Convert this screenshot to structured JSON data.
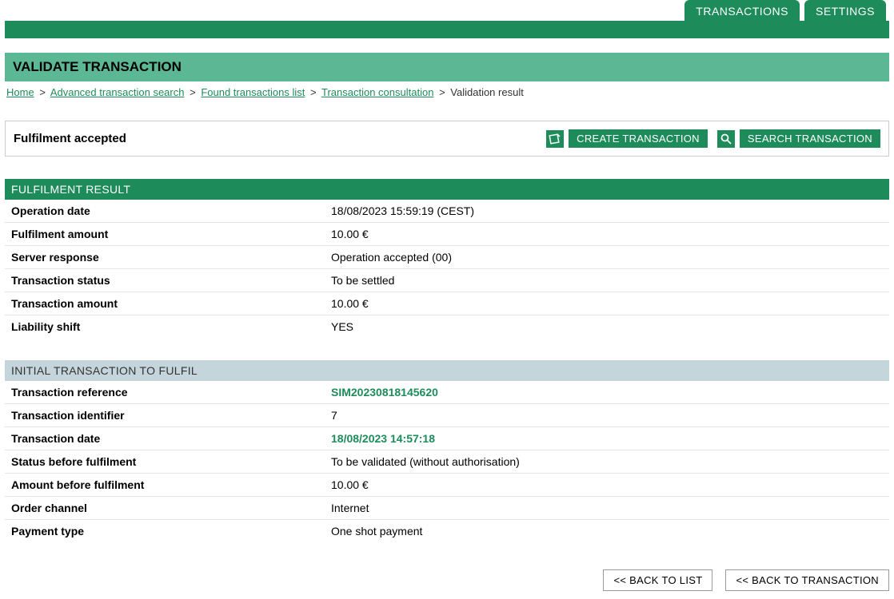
{
  "tabs": {
    "transactions": "TRANSACTIONS",
    "settings": "SETTINGS"
  },
  "page_title": "VALIDATE TRANSACTION",
  "breadcrumb": {
    "home": "Home",
    "advanced_search": "Advanced transaction search",
    "found_list": "Found transactions list",
    "consultation": "Transaction consultation",
    "current": "Validation result"
  },
  "status": {
    "text": "Fulfilment accepted",
    "create_label": "CREATE TRANSACTION",
    "search_label": "SEARCH TRANSACTION"
  },
  "fulfilment_result": {
    "header": "FULFILMENT RESULT",
    "rows": [
      {
        "label": "Operation date",
        "value": "18/08/2023 15:59:19 (CEST)"
      },
      {
        "label": "Fulfilment amount",
        "value": "10.00 €"
      },
      {
        "label": "Server response",
        "value": "Operation accepted (00)"
      },
      {
        "label": "Transaction status",
        "value": "To be settled"
      },
      {
        "label": "Transaction amount",
        "value": "10.00 €"
      },
      {
        "label": "Liability shift",
        "value": "YES"
      }
    ]
  },
  "initial_transaction": {
    "header": "INITIAL TRANSACTION TO FULFIL",
    "rows": [
      {
        "label": "Transaction reference",
        "value": "SIM20230818145620",
        "highlight": true
      },
      {
        "label": "Transaction identifier",
        "value": "7"
      },
      {
        "label": "Transaction date",
        "value": "18/08/2023 14:57:18",
        "highlight": true
      },
      {
        "label": "Status before fulfilment",
        "value": "To be validated (without authorisation)"
      },
      {
        "label": "Amount before fulfilment",
        "value": "10.00 €"
      },
      {
        "label": "Order channel",
        "value": "Internet"
      },
      {
        "label": "Payment type",
        "value": "One shot payment"
      }
    ]
  },
  "footer": {
    "back_list": "<< BACK TO LIST",
    "back_transaction": "<< BACK TO TRANSACTION"
  }
}
